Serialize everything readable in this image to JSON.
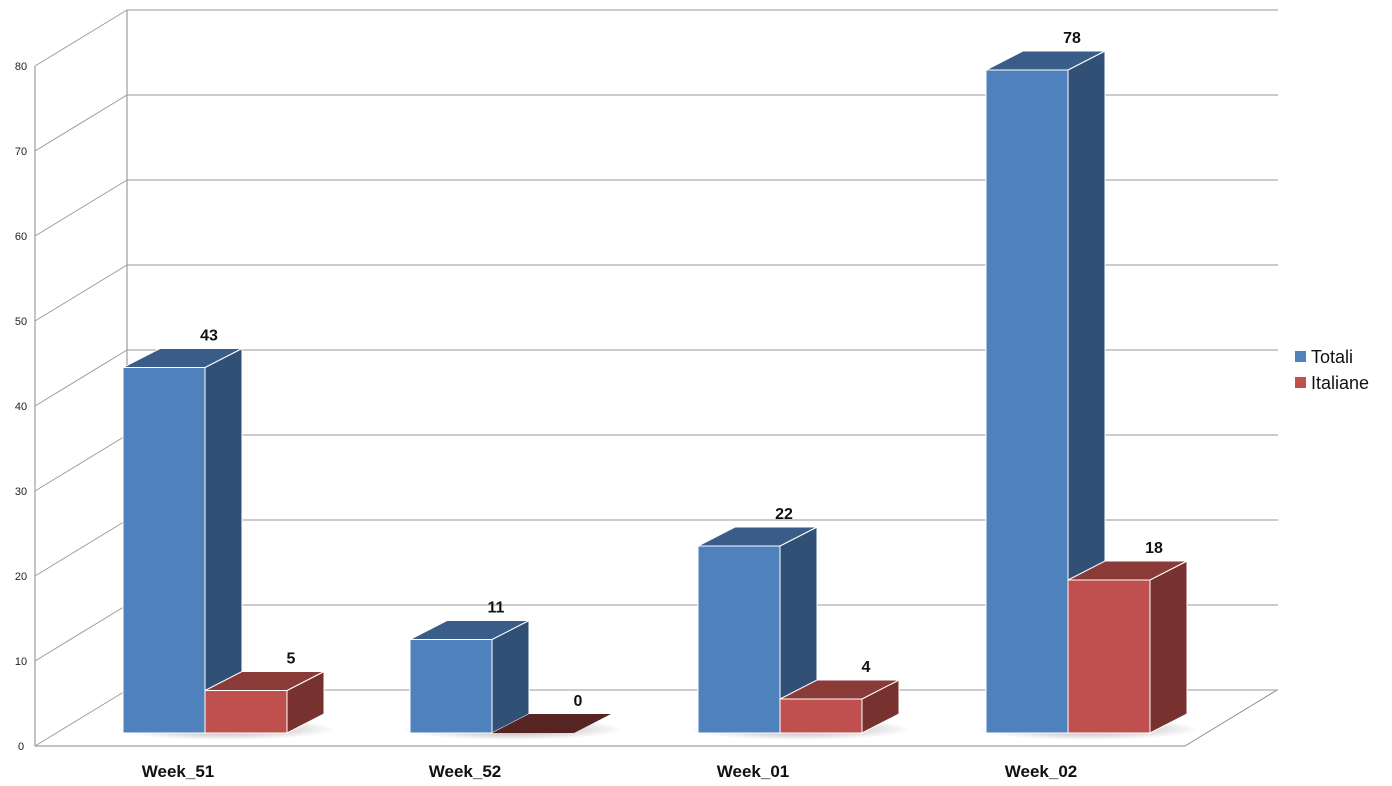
{
  "chart_data": {
    "type": "bar",
    "categories": [
      "Week_51",
      "Week_52",
      "Week_01",
      "Week_02"
    ],
    "series": [
      {
        "name": "Totali",
        "values": [
          43,
          11,
          22,
          78
        ],
        "color": "#4F81BD"
      },
      {
        "name": "Italiane",
        "values": [
          5,
          0,
          4,
          18
        ],
        "color": "#C0504D"
      }
    ],
    "ylim": [
      0,
      80
    ],
    "yticks": [
      0,
      10,
      20,
      30,
      40,
      50,
      60,
      70,
      80
    ],
    "grid": true,
    "legend": "right",
    "data_labels": true
  }
}
